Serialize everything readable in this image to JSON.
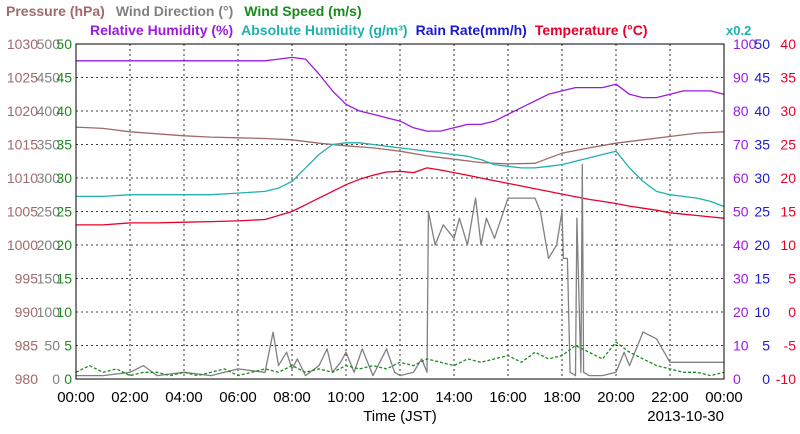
{
  "chart_data": {
    "type": "line",
    "date_label": "2013-10-30",
    "xlabel": "Time (JST)",
    "x_ticks": [
      "00:00",
      "02:00",
      "04:00",
      "06:00",
      "08:00",
      "10:00",
      "12:00",
      "14:00",
      "16:00",
      "18:00",
      "20:00",
      "22:00",
      "00:00"
    ],
    "x_range_hours": [
      0,
      24
    ],
    "grid": true,
    "legend": {
      "row1": [
        {
          "text": "Pressure (hPa)",
          "color": "#a06a6a"
        },
        {
          "text": "Wind Direction (°)",
          "color": "#808080"
        },
        {
          "text": "Wind Speed (m/s)",
          "color": "#1a8a1a"
        }
      ],
      "row2": [
        {
          "text": "Relative Humidity (%)",
          "color": "#9a1ae0"
        },
        {
          "text": "Absolute Humidity (g/m³)",
          "color": "#20b0b0"
        },
        {
          "text": "Rain Rate(mm/h)",
          "color": "#1a1ad0"
        },
        {
          "text": "Temperature (°C)",
          "color": "#e8002a"
        }
      ],
      "rain_scale_note": "x0.2"
    },
    "axes": {
      "pressure": {
        "unit": "hPa",
        "range": [
          980,
          1030
        ],
        "ticks": [
          "980",
          "985",
          "990",
          "995",
          "1000",
          "1005",
          "1010",
          "1015",
          "1020",
          "1025",
          "1030"
        ],
        "color": "#a06a6a"
      },
      "wind_direction": {
        "unit": "°",
        "range": [
          0,
          500
        ],
        "ticks": [
          "0",
          "50",
          "100",
          "150",
          "200",
          "250",
          "300",
          "350",
          "400",
          "450",
          "500"
        ],
        "color": "#808080"
      },
      "wind_speed": {
        "unit": "m/s",
        "range": [
          0,
          50
        ],
        "ticks": [
          "0",
          "5",
          "10",
          "15",
          "20",
          "25",
          "30",
          "35",
          "40",
          "45",
          "50"
        ],
        "color": "#1a8a1a"
      },
      "relative_humidity": {
        "unit": "%",
        "range": [
          0,
          100
        ],
        "ticks": [
          "0",
          "10",
          "20",
          "30",
          "40",
          "50",
          "60",
          "70",
          "80",
          "90",
          "100"
        ],
        "color": "#9a1ae0"
      },
      "rain_rate": {
        "unit": "mm/h",
        "range": [
          0,
          50
        ],
        "ticks": [
          "0",
          "5",
          "10",
          "15",
          "20",
          "25",
          "30",
          "35",
          "40",
          "45",
          "50"
        ],
        "color": "#1a1ad0"
      },
      "temperature": {
        "unit": "°C",
        "range": [
          -10,
          40
        ],
        "ticks": [
          "-10",
          "-5",
          "0",
          "5",
          "10",
          "15",
          "20",
          "25",
          "30",
          "35",
          "40"
        ],
        "color": "#e8002a"
      }
    },
    "series": [
      {
        "name": "Pressure (hPa)",
        "axis": "pressure",
        "color": "#a06a6a",
        "x": [
          0,
          1,
          2,
          3,
          4,
          5,
          6,
          7,
          8,
          9,
          10,
          11,
          12,
          13,
          14,
          15,
          16,
          17,
          18,
          19,
          20,
          21,
          22,
          23,
          24
        ],
        "y": [
          1017.6,
          1017.4,
          1016.9,
          1016.6,
          1016.3,
          1016.1,
          1016.0,
          1015.9,
          1015.7,
          1015.2,
          1014.8,
          1014.5,
          1014.0,
          1013.3,
          1012.8,
          1012.3,
          1012.1,
          1012.2,
          1013.7,
          1014.5,
          1015.2,
          1015.7,
          1016.2,
          1016.7,
          1016.9
        ]
      },
      {
        "name": "Relative Humidity (%)",
        "axis": "relative_humidity",
        "color": "#9a1ae0",
        "x": [
          0,
          1,
          2,
          3,
          4,
          5,
          6,
          7,
          7.5,
          8,
          8.5,
          9,
          9.5,
          10,
          10.5,
          11,
          11.5,
          12,
          12.5,
          13,
          13.5,
          14,
          14.5,
          15,
          15.5,
          16,
          16.5,
          17,
          17.5,
          18,
          18.5,
          19,
          19.5,
          20,
          20.5,
          21,
          21.5,
          22,
          22.5,
          23,
          23.5,
          24
        ],
        "y": [
          95,
          95,
          95,
          95,
          95,
          95,
          95,
          95,
          95.5,
          96,
          95.5,
          91,
          86,
          82,
          80,
          79,
          78,
          77,
          75,
          74,
          74,
          75,
          76,
          76,
          77,
          79,
          81,
          83,
          85,
          86,
          87,
          87,
          87,
          88,
          85,
          84,
          84,
          85,
          86,
          86,
          86,
          85
        ]
      },
      {
        "name": "Absolute Humidity (g/m³)",
        "axis": "relative_humidity",
        "color": "#20b0b0",
        "x": [
          0,
          1,
          2,
          3,
          4,
          5,
          6,
          7,
          7.5,
          8,
          8.5,
          9,
          9.5,
          10,
          10.5,
          11,
          11.5,
          12,
          12.5,
          13,
          13.5,
          14,
          14.5,
          15,
          15.5,
          16,
          16.5,
          17,
          17.5,
          18,
          18.5,
          19,
          19.5,
          20,
          20.5,
          21,
          21.5,
          22,
          22.5,
          23,
          23.5,
          24
        ],
        "y": [
          54.5,
          54.5,
          55,
          55,
          55,
          55,
          55.5,
          56,
          57,
          59,
          63,
          67,
          70,
          70.5,
          70.5,
          70,
          69.5,
          69,
          68.5,
          68,
          67.5,
          67,
          66.5,
          65.5,
          64,
          63.5,
          63,
          63,
          63.5,
          64,
          65,
          66,
          67,
          68,
          63,
          59,
          56,
          55,
          54.5,
          54,
          53,
          51.5
        ]
      },
      {
        "name": "Temperature (°C)",
        "axis": "temperature",
        "color": "#e8002a",
        "x": [
          0,
          1,
          2,
          3,
          4,
          5,
          6,
          7,
          7.5,
          8,
          8.5,
          9,
          9.5,
          10,
          10.5,
          11,
          11.5,
          12,
          12.5,
          13,
          13.5,
          14,
          14.5,
          15,
          15.5,
          16,
          16.5,
          17,
          17.5,
          18,
          18.5,
          19,
          19.5,
          20,
          20.5,
          21,
          21.5,
          22,
          22.5,
          23,
          23.5,
          24
        ],
        "y": [
          13,
          13,
          13.3,
          13.3,
          13.4,
          13.5,
          13.6,
          13.8,
          14.4,
          15,
          16,
          17,
          18,
          19,
          19.8,
          20.4,
          20.9,
          21,
          20.8,
          21.5,
          21.2,
          20.8,
          20.4,
          20,
          19.6,
          19.2,
          18.8,
          18.4,
          18,
          17.6,
          17.2,
          16.8,
          16.5,
          16.2,
          15.8,
          15.5,
          15.2,
          14.8,
          14.6,
          14.4,
          14.2,
          14
        ]
      },
      {
        "name": "Wind Direction (°)",
        "axis": "wind_direction",
        "color": "#808080",
        "x": [
          0,
          1,
          2,
          2.5,
          3,
          4,
          5,
          6,
          7,
          7.3,
          7.5,
          7.8,
          8,
          8.2,
          8.5,
          9,
          9.3,
          9.5,
          9.8,
          10,
          10.3,
          10.6,
          11,
          11.5,
          11.8,
          12,
          12.5,
          12.8,
          13,
          13.05,
          13.3,
          13.6,
          14,
          14.2,
          14.5,
          14.8,
          15,
          15.2,
          15.5,
          16,
          16.5,
          17,
          17.2,
          17.5,
          17.8,
          18,
          18.05,
          18.2,
          18.3,
          18.5,
          18.55,
          18.7,
          18.75,
          18.8,
          19,
          19.5,
          20,
          20.3,
          20.5,
          21,
          21.5,
          22,
          22.5,
          23,
          24
        ],
        "y": [
          5,
          5,
          10,
          20,
          5,
          10,
          5,
          15,
          10,
          70,
          20,
          40,
          15,
          30,
          5,
          20,
          45,
          10,
          25,
          40,
          10,
          45,
          5,
          45,
          10,
          5,
          10,
          30,
          10,
          250,
          200,
          230,
          210,
          240,
          200,
          270,
          200,
          240,
          210,
          270,
          270,
          270,
          250,
          180,
          200,
          250,
          180,
          180,
          10,
          5,
          240,
          10,
          320,
          10,
          5,
          5,
          10,
          40,
          20,
          70,
          60,
          25,
          25,
          25,
          25
        ]
      },
      {
        "name": "Wind Speed (m/s)",
        "axis": "wind_speed",
        "color": "#1a8a1a",
        "x": [
          0,
          0.5,
          1,
          1.5,
          2,
          2.5,
          3,
          3.5,
          4,
          4.5,
          5,
          5.5,
          6,
          6.5,
          7,
          7.5,
          8,
          8.5,
          9,
          9.5,
          10,
          10.5,
          11,
          11.5,
          12,
          12.5,
          13,
          13.5,
          14,
          14.5,
          15,
          15.5,
          16,
          16.5,
          17,
          17.5,
          18,
          18.5,
          19,
          19.5,
          20,
          20.5,
          21,
          21.5,
          22,
          22.5,
          23,
          23.5,
          24
        ],
        "y": [
          1,
          2,
          1,
          1.5,
          0.5,
          1,
          1,
          0.5,
          1,
          0.5,
          1,
          1.5,
          0.5,
          1,
          1.5,
          1,
          2,
          1,
          1.5,
          1,
          2,
          1.5,
          2,
          1.5,
          2.5,
          2,
          3,
          2.5,
          2,
          3,
          2.5,
          3,
          3.5,
          2.5,
          4,
          3,
          3.5,
          5,
          4,
          3,
          5.5,
          4,
          3,
          2,
          1.5,
          1,
          1,
          0.5,
          1
        ]
      }
    ]
  }
}
